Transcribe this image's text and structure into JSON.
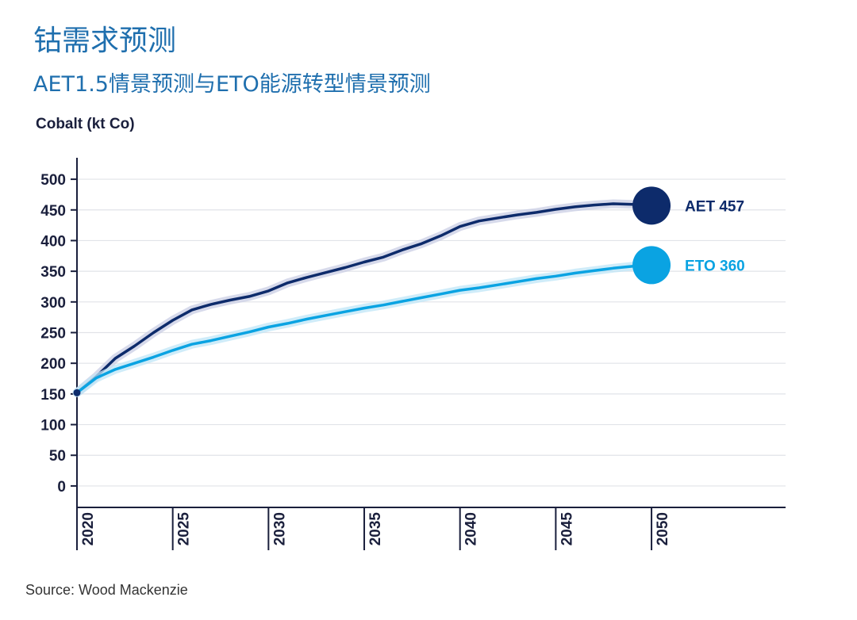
{
  "colors": {
    "aet": "#0d2b6b",
    "aet_halo": "#c9cde4",
    "eto": "#0aa3e2",
    "eto_halo": "#bfe6f7",
    "axis": "#1a1f3c",
    "grid": "#e1e3e8"
  },
  "chart_data": {
    "type": "line",
    "title": "钴需求预测",
    "subtitle": "AET1.5情景预测与ETO能源转型情景预测",
    "ylabel": "Cobalt (kt Co)",
    "xlabel": "",
    "xlim": [
      2020,
      2057
    ],
    "ylim": [
      -35,
      535
    ],
    "yticks": [
      0,
      50,
      100,
      150,
      200,
      250,
      300,
      350,
      400,
      450,
      500
    ],
    "xticks": [
      2020,
      2025,
      2030,
      2035,
      2040,
      2045,
      2050
    ],
    "grid": true,
    "series": [
      {
        "name": "AET",
        "end_label": "AET 457",
        "x": [
          2020,
          2021,
          2022,
          2023,
          2024,
          2025,
          2026,
          2027,
          2028,
          2029,
          2030,
          2031,
          2032,
          2033,
          2034,
          2035,
          2036,
          2037,
          2038,
          2039,
          2040,
          2041,
          2042,
          2043,
          2044,
          2045,
          2046,
          2047,
          2048,
          2049
        ],
        "values": [
          152,
          178,
          208,
          228,
          250,
          270,
          287,
          296,
          303,
          309,
          318,
          331,
          340,
          348,
          356,
          365,
          373,
          385,
          395,
          408,
          423,
          432,
          437,
          442,
          446,
          451,
          455,
          458,
          460,
          459
        ]
      },
      {
        "name": "ETO",
        "end_label": "ETO 360",
        "x": [
          2020,
          2021,
          2022,
          2023,
          2024,
          2025,
          2026,
          2027,
          2028,
          2029,
          2030,
          2031,
          2032,
          2033,
          2034,
          2035,
          2036,
          2037,
          2038,
          2039,
          2040,
          2041,
          2042,
          2043,
          2044,
          2045,
          2046,
          2047,
          2048,
          2049
        ],
        "values": [
          152,
          176,
          190,
          200,
          210,
          221,
          231,
          237,
          244,
          251,
          259,
          265,
          272,
          278,
          284,
          290,
          295,
          301,
          307,
          313,
          319,
          323,
          328,
          333,
          338,
          342,
          347,
          351,
          355,
          358
        ]
      }
    ],
    "end_markers": [
      {
        "series": "AET",
        "x": 2050,
        "y": 457
      },
      {
        "series": "ETO",
        "x": 2050,
        "y": 360
      }
    ]
  },
  "source": "Source: Wood Mackenzie"
}
